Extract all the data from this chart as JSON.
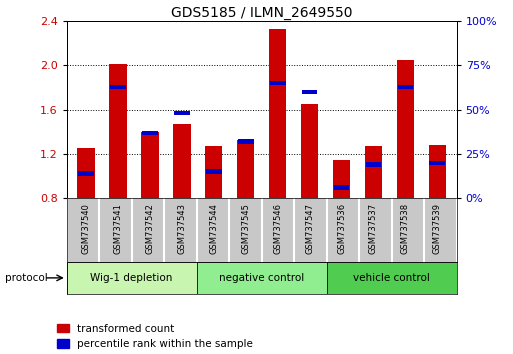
{
  "title": "GDS5185 / ILMN_2649550",
  "samples": [
    "GSM737540",
    "GSM737541",
    "GSM737542",
    "GSM737543",
    "GSM737544",
    "GSM737545",
    "GSM737546",
    "GSM737547",
    "GSM737536",
    "GSM737537",
    "GSM737538",
    "GSM737539"
  ],
  "red_values": [
    1.25,
    2.01,
    1.4,
    1.47,
    1.27,
    1.33,
    2.33,
    1.65,
    1.15,
    1.27,
    2.05,
    1.28
  ],
  "blue_values": [
    14,
    63,
    37,
    48,
    15,
    32,
    65,
    60,
    6,
    19,
    63,
    20
  ],
  "ylim_left": [
    0.8,
    2.4
  ],
  "ylim_right": [
    0,
    100
  ],
  "yticks_left": [
    0.8,
    1.2,
    1.6,
    2.0,
    2.4
  ],
  "yticks_right": [
    0,
    25,
    50,
    75,
    100
  ],
  "groups": [
    {
      "label": "Wig-1 depletion",
      "start": 0,
      "end": 4,
      "color": "#c8f5b0"
    },
    {
      "label": "negative control",
      "start": 4,
      "end": 8,
      "color": "#90ee90"
    },
    {
      "label": "vehicle control",
      "start": 8,
      "end": 12,
      "color": "#50cd50"
    }
  ],
  "bar_width": 0.55,
  "red_color": "#cc0000",
  "blue_color": "#0000cc",
  "background_color": "#ffffff",
  "tick_label_color_left": "#cc0000",
  "tick_label_color_right": "#0000cc",
  "legend_red": "transformed count",
  "legend_blue": "percentile rank within the sample",
  "protocol_label": "protocol",
  "title_fontsize": 10
}
